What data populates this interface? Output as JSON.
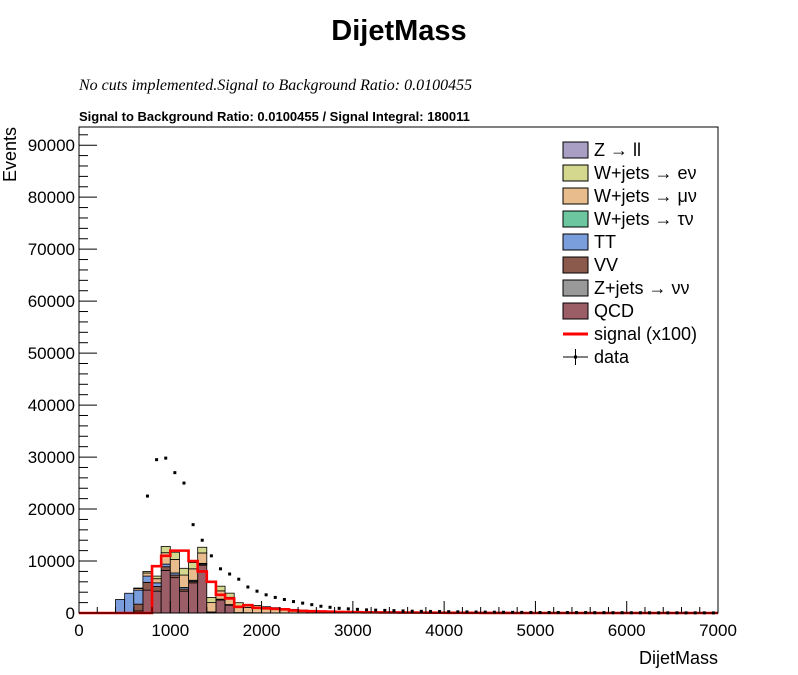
{
  "chart_data": {
    "type": "bar",
    "title": "DijetMass",
    "subtitle": "No cuts implemented.Signal to Background Ratio: 0.0100455",
    "header": "Signal to Background Ratio: 0.0100455 / Signal Integral: 180011",
    "xlabel": "DijetMass",
    "ylabel": "Events",
    "xlim": [
      0,
      7000
    ],
    "ylim": [
      0,
      93500
    ],
    "x_ticks": [
      0,
      1000,
      2000,
      3000,
      4000,
      5000,
      6000,
      7000
    ],
    "x_tick_labels": [
      "0",
      "1000",
      "2000",
      "3000",
      "4000",
      "5000",
      "6000",
      "7000"
    ],
    "y_ticks": [
      0,
      10000,
      20000,
      30000,
      40000,
      50000,
      60000,
      70000,
      80000,
      90000
    ],
    "y_tick_labels": [
      "0",
      "10000",
      "20000",
      "30000",
      "40000",
      "50000",
      "60000",
      "70000",
      "80000",
      "90000"
    ],
    "legend_placement": "top-right",
    "bin_width": 100,
    "bin_edges_start": 0,
    "stacked": true,
    "series": [
      {
        "name": "QCD",
        "legend": "QCD",
        "color": "#9b5d66",
        "values": [
          0,
          0,
          0,
          0,
          0,
          0,
          400,
          4400,
          4200,
          8200,
          6800,
          4200,
          5800,
          9200,
          0,
          2500,
          1500,
          0,
          0,
          0,
          0,
          0,
          0,
          0,
          0,
          0,
          0,
          0,
          0,
          0,
          0,
          0,
          0,
          0,
          0,
          0,
          0,
          0,
          0,
          0,
          0,
          0,
          0,
          0,
          0,
          0,
          0,
          0,
          0,
          0,
          0,
          0,
          0,
          0,
          0,
          0,
          0,
          0,
          0,
          0,
          0,
          0,
          0,
          0,
          0,
          0,
          0,
          0,
          0,
          0
        ]
      },
      {
        "name": "Z+jets → νν",
        "legend": "Z+jets → νν",
        "color": "#999999",
        "values": [
          0,
          0,
          0,
          0,
          0,
          0,
          0,
          0,
          0,
          0,
          0,
          0,
          0,
          0,
          0,
          0,
          0,
          0,
          0,
          0,
          0,
          0,
          0,
          0,
          0,
          0,
          0,
          0,
          0,
          0,
          0,
          0,
          0,
          0,
          0,
          0,
          0,
          0,
          0,
          0,
          0,
          0,
          0,
          0,
          0,
          0,
          0,
          0,
          0,
          0,
          0,
          0,
          0,
          0,
          0,
          0,
          0,
          0,
          0,
          0,
          0,
          0,
          0,
          0,
          0,
          0,
          0,
          0,
          0,
          0
        ]
      },
      {
        "name": "VV",
        "legend": "VV",
        "color": "#8b5a4c",
        "values": [
          0,
          0,
          0,
          0,
          0,
          0,
          1300,
          1500,
          900,
          700,
          500,
          400,
          300,
          200,
          100,
          80,
          60,
          40,
          30,
          20,
          0,
          0,
          0,
          0,
          0,
          0,
          0,
          0,
          0,
          0,
          0,
          0,
          0,
          0,
          0,
          0,
          0,
          0,
          0,
          0,
          0,
          0,
          0,
          0,
          0,
          0,
          0,
          0,
          0,
          0,
          0,
          0,
          0,
          0,
          0,
          0,
          0,
          0,
          0,
          0,
          0,
          0,
          0,
          0,
          0,
          0,
          0,
          0,
          0,
          0
        ]
      },
      {
        "name": "TT",
        "legend": "TT",
        "color": "#7a9ddc",
        "values": [
          0,
          0,
          0,
          0,
          2600,
          3800,
          2700,
          1200,
          700,
          500,
          400,
          300,
          200,
          150,
          100,
          80,
          60,
          40,
          30,
          20,
          10,
          0,
          0,
          0,
          0,
          0,
          0,
          0,
          0,
          0,
          0,
          0,
          0,
          0,
          0,
          0,
          0,
          0,
          0,
          0,
          0,
          0,
          0,
          0,
          0,
          0,
          0,
          0,
          0,
          0,
          0,
          0,
          0,
          0,
          0,
          0,
          0,
          0,
          0,
          0,
          0,
          0,
          0,
          0,
          0,
          0,
          0,
          0,
          0,
          0
        ]
      },
      {
        "name": "W+jets → τν",
        "legend": "W+jets → τν",
        "color": "#6cc7a1",
        "values": [
          0,
          0,
          0,
          0,
          0,
          0,
          0,
          0,
          0,
          0,
          0,
          0,
          0,
          0,
          0,
          0,
          0,
          0,
          0,
          0,
          0,
          0,
          0,
          0,
          0,
          0,
          0,
          0,
          0,
          0,
          0,
          0,
          0,
          0,
          0,
          0,
          0,
          0,
          0,
          0,
          0,
          0,
          0,
          0,
          0,
          0,
          0,
          0,
          0,
          0,
          0,
          0,
          0,
          0,
          0,
          0,
          0,
          0,
          0,
          0,
          0,
          0,
          0,
          0,
          0,
          0,
          0,
          0,
          0,
          0
        ]
      },
      {
        "name": "W+jets → μν",
        "legend": "W+jets → μν",
        "color": "#e8bc8d",
        "values": [
          0,
          0,
          0,
          0,
          0,
          0,
          300,
          600,
          800,
          2200,
          2600,
          2400,
          2200,
          2000,
          1800,
          1600,
          1400,
          1200,
          1000,
          900,
          800,
          700,
          600,
          500,
          400,
          320,
          260,
          200,
          160,
          120,
          100,
          80,
          60,
          40,
          30,
          20,
          0,
          0,
          0,
          0,
          0,
          0,
          0,
          0,
          0,
          0,
          0,
          0,
          0,
          0,
          0,
          0,
          0,
          0,
          0,
          0,
          0,
          0,
          0,
          0,
          0,
          0,
          0,
          0,
          0,
          0,
          0,
          0,
          0,
          0
        ]
      },
      {
        "name": "W+jets → eν",
        "legend": "W+jets → eν",
        "color": "#d4d88e",
        "values": [
          0,
          0,
          0,
          0,
          0,
          0,
          100,
          300,
          500,
          1200,
          1400,
          1300,
          1200,
          1100,
          1000,
          900,
          800,
          700,
          600,
          500,
          400,
          330,
          260,
          200,
          160,
          120,
          100,
          80,
          60,
          40,
          30,
          20,
          10,
          0,
          0,
          0,
          0,
          0,
          0,
          0,
          0,
          0,
          0,
          0,
          0,
          0,
          0,
          0,
          0,
          0,
          0,
          0,
          0,
          0,
          0,
          0,
          0,
          0,
          0,
          0,
          0,
          0,
          0,
          0,
          0,
          0,
          0,
          0,
          0,
          0,
          0,
          0
        ]
      },
      {
        "name": "Z → ll",
        "legend": "Z → ll",
        "color": "#a99fc4",
        "values": [
          0,
          0,
          0,
          0,
          0,
          0,
          0,
          0,
          0,
          0,
          0,
          0,
          0,
          0,
          0,
          0,
          0,
          0,
          0,
          0,
          0,
          0,
          0,
          0,
          0,
          0,
          0,
          0,
          0,
          0,
          0,
          0,
          0,
          0,
          0,
          0,
          0,
          0,
          0,
          0,
          0,
          0,
          0,
          0,
          0,
          0,
          0,
          0,
          0,
          0,
          0,
          0,
          0,
          0,
          0,
          0,
          0,
          0,
          0,
          0,
          0,
          0,
          0,
          0,
          0,
          0,
          0,
          0,
          0,
          0
        ]
      }
    ],
    "signal": {
      "name": "signal (x100)",
      "legend": "signal (x100)",
      "color": "#ff0000",
      "values": [
        0,
        0,
        0,
        0,
        0,
        0,
        0,
        0,
        9000,
        11000,
        12000,
        12000,
        10000,
        8000,
        6000,
        3500,
        2800,
        1200,
        1500,
        1000,
        900,
        800,
        700,
        500,
        400,
        350,
        300,
        250,
        200,
        180,
        160,
        140,
        120,
        110,
        100,
        90,
        80,
        70,
        60,
        50,
        40,
        35,
        30,
        25,
        20,
        15,
        10,
        0,
        0,
        0,
        0,
        0,
        0,
        0,
        0,
        0,
        0,
        0,
        0,
        0,
        0,
        0,
        0,
        0,
        0,
        0,
        0,
        0,
        0,
        0
      ]
    },
    "data": {
      "name": "data",
      "legend": "data",
      "color": "#000000",
      "points": [
        [
          750,
          22500
        ],
        [
          850,
          29500
        ],
        [
          950,
          29800
        ],
        [
          1050,
          27000
        ],
        [
          1150,
          25000
        ],
        [
          1250,
          17000
        ],
        [
          1350,
          14000
        ],
        [
          1450,
          11000
        ],
        [
          1550,
          8500
        ],
        [
          1650,
          7500
        ],
        [
          1750,
          6500
        ],
        [
          1850,
          5000
        ],
        [
          1950,
          4200
        ],
        [
          2050,
          3500
        ],
        [
          2150,
          3000
        ],
        [
          2250,
          2600
        ],
        [
          2350,
          2200
        ],
        [
          2450,
          1900
        ],
        [
          2550,
          1600
        ],
        [
          2650,
          1300
        ],
        [
          2750,
          1100
        ],
        [
          2850,
          900
        ],
        [
          2950,
          800
        ],
        [
          3050,
          700
        ],
        [
          3150,
          600
        ],
        [
          3250,
          550
        ],
        [
          3350,
          500
        ],
        [
          3450,
          450
        ],
        [
          3550,
          400
        ],
        [
          3650,
          350
        ],
        [
          3750,
          320
        ],
        [
          3850,
          300
        ],
        [
          3950,
          280
        ],
        [
          4050,
          250
        ],
        [
          4150,
          230
        ],
        [
          4250,
          210
        ],
        [
          4350,
          190
        ],
        [
          4450,
          170
        ],
        [
          4550,
          150
        ],
        [
          4650,
          140
        ],
        [
          4750,
          130
        ],
        [
          4850,
          120
        ],
        [
          4950,
          110
        ],
        [
          5050,
          100
        ],
        [
          5150,
          100
        ],
        [
          5250,
          90
        ],
        [
          5350,
          90
        ],
        [
          5450,
          80
        ],
        [
          5550,
          80
        ],
        [
          5650,
          70
        ],
        [
          5750,
          70
        ],
        [
          5850,
          60
        ],
        [
          5950,
          60
        ],
        [
          6050,
          50
        ],
        [
          6150,
          50
        ],
        [
          6250,
          50
        ],
        [
          6350,
          40
        ],
        [
          6450,
          40
        ],
        [
          6550,
          40
        ],
        [
          6650,
          30
        ],
        [
          6750,
          30
        ],
        [
          6850,
          30
        ],
        [
          6950,
          20
        ]
      ]
    }
  }
}
